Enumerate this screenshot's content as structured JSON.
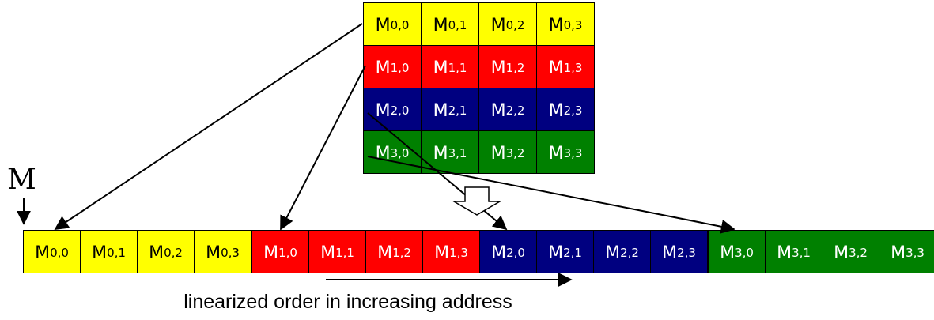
{
  "matrix_label": "M",
  "caption": "linearized order in increasing address",
  "row_colors": [
    {
      "fill": "#ffff00",
      "text": "#000000"
    },
    {
      "fill": "#ff0000",
      "text": "#ffffff"
    },
    {
      "fill": "#000080",
      "text": "#ffffff"
    },
    {
      "fill": "#008000",
      "text": "#ffffff"
    }
  ],
  "matrix": [
    [
      {
        "base": "M",
        "sub": "0,0"
      },
      {
        "base": "M",
        "sub": "0,1"
      },
      {
        "base": "M",
        "sub": "0,2"
      },
      {
        "base": "M",
        "sub": "0,3"
      }
    ],
    [
      {
        "base": "M",
        "sub": "1,0"
      },
      {
        "base": "M",
        "sub": "1,1"
      },
      {
        "base": "M",
        "sub": "1,2"
      },
      {
        "base": "M",
        "sub": "1,3"
      }
    ],
    [
      {
        "base": "M",
        "sub": "2,0"
      },
      {
        "base": "M",
        "sub": "2,1"
      },
      {
        "base": "M",
        "sub": "2,2"
      },
      {
        "base": "M",
        "sub": "2,3"
      }
    ],
    [
      {
        "base": "M",
        "sub": "3,0"
      },
      {
        "base": "M",
        "sub": "3,1"
      },
      {
        "base": "M",
        "sub": "3,2"
      },
      {
        "base": "M",
        "sub": "3,3"
      }
    ]
  ],
  "linear": [
    {
      "base": "M",
      "sub": "0,0",
      "row": 0
    },
    {
      "base": "M",
      "sub": "0,1",
      "row": 0
    },
    {
      "base": "M",
      "sub": "0,2",
      "row": 0
    },
    {
      "base": "M",
      "sub": "0,3",
      "row": 0
    },
    {
      "base": "M",
      "sub": "1,0",
      "row": 1
    },
    {
      "base": "M",
      "sub": "1,1",
      "row": 1
    },
    {
      "base": "M",
      "sub": "1,2",
      "row": 1
    },
    {
      "base": "M",
      "sub": "1,3",
      "row": 1
    },
    {
      "base": "M",
      "sub": "2,0",
      "row": 2
    },
    {
      "base": "M",
      "sub": "2,1",
      "row": 2
    },
    {
      "base": "M",
      "sub": "2,2",
      "row": 2
    },
    {
      "base": "M",
      "sub": "2,3",
      "row": 2
    },
    {
      "base": "M",
      "sub": "3,0",
      "row": 3
    },
    {
      "base": "M",
      "sub": "3,1",
      "row": 3
    },
    {
      "base": "M",
      "sub": "3,2",
      "row": 3
    },
    {
      "base": "M",
      "sub": "3,3",
      "row": 3
    }
  ]
}
